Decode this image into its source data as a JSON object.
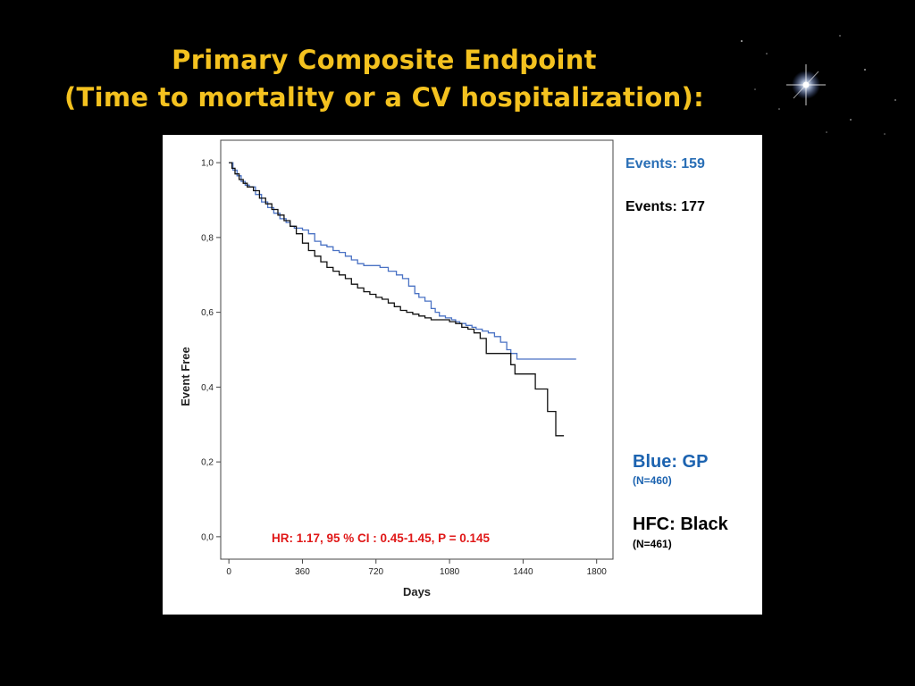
{
  "slide": {
    "title_line1": "Primary Composite Endpoint",
    "title_line2": "(Time to mortality or a CV hospitalization):",
    "title_color": "#f4c21f",
    "background": "#000000"
  },
  "annotations": {
    "events_gp": "Events: 159",
    "events_hfc": "Events: 177",
    "legend_gp_label": "Blue: GP",
    "legend_gp_n": "(N=460)",
    "legend_hfc_label": "HFC: Black",
    "legend_hfc_n": "(N=461)",
    "stats": "HR: 1.17, 95 % CI : 0.45-1.45, P = 0.145",
    "stats_color": "#e01818",
    "gp_color": "#2a6fb6",
    "hfc_color": "#000000"
  },
  "chart_data": {
    "type": "line",
    "xlabel": "Days",
    "ylabel": "Event Free",
    "xlim": [
      -40,
      1880
    ],
    "ylim": [
      -0.06,
      1.06
    ],
    "x_ticks": [
      0,
      360,
      720,
      1080,
      1440,
      1800
    ],
    "x_tick_labels": [
      "0",
      "360",
      "720",
      "1080",
      "1440",
      "1800"
    ],
    "y_ticks": [
      0.0,
      0.2,
      0.4,
      0.6,
      0.8,
      1.0
    ],
    "y_tick_labels": [
      "0,0",
      "0,2",
      "0,4",
      "0,6",
      "0,8",
      "1,0"
    ],
    "grid": false,
    "step": true,
    "series": [
      {
        "key": "gp",
        "color": "#4a72c4",
        "x": [
          0,
          20,
          40,
          60,
          80,
          100,
          130,
          160,
          190,
          220,
          250,
          280,
          300,
          320,
          340,
          360,
          390,
          420,
          450,
          480,
          510,
          540,
          570,
          600,
          630,
          660,
          700,
          740,
          780,
          820,
          850,
          880,
          910,
          930,
          960,
          990,
          1010,
          1030,
          1060,
          1090,
          1110,
          1130,
          1160,
          1190,
          1210,
          1240,
          1270,
          1300,
          1330,
          1360,
          1380,
          1410,
          1440,
          1480,
          1520,
          1560,
          1600,
          1640,
          1700
        ],
        "y": [
          1.0,
          0.98,
          0.965,
          0.95,
          0.94,
          0.935,
          0.915,
          0.895,
          0.88,
          0.865,
          0.85,
          0.84,
          0.83,
          0.825,
          0.825,
          0.82,
          0.81,
          0.79,
          0.78,
          0.775,
          0.765,
          0.76,
          0.75,
          0.74,
          0.73,
          0.725,
          0.725,
          0.72,
          0.71,
          0.7,
          0.69,
          0.67,
          0.65,
          0.64,
          0.63,
          0.61,
          0.6,
          0.59,
          0.585,
          0.58,
          0.575,
          0.57,
          0.565,
          0.56,
          0.555,
          0.55,
          0.545,
          0.535,
          0.52,
          0.5,
          0.49,
          0.475,
          0.475,
          0.475,
          0.475,
          0.475,
          0.475,
          0.475,
          0.475
        ]
      },
      {
        "key": "hfc",
        "color": "#111111",
        "x": [
          0,
          15,
          30,
          50,
          70,
          90,
          120,
          150,
          180,
          210,
          240,
          270,
          300,
          330,
          360,
          390,
          420,
          450,
          480,
          510,
          540,
          570,
          600,
          630,
          660,
          690,
          720,
          750,
          780,
          810,
          840,
          870,
          900,
          930,
          960,
          990,
          1020,
          1050,
          1080,
          1110,
          1140,
          1170,
          1200,
          1230,
          1260,
          1280,
          1320,
          1360,
          1380,
          1400,
          1440,
          1460,
          1500,
          1530,
          1560,
          1580,
          1600,
          1640
        ],
        "y": [
          1.0,
          0.985,
          0.97,
          0.955,
          0.945,
          0.935,
          0.925,
          0.905,
          0.89,
          0.875,
          0.86,
          0.845,
          0.83,
          0.81,
          0.785,
          0.765,
          0.75,
          0.735,
          0.72,
          0.71,
          0.7,
          0.69,
          0.675,
          0.665,
          0.655,
          0.648,
          0.64,
          0.635,
          0.625,
          0.615,
          0.605,
          0.6,
          0.595,
          0.59,
          0.585,
          0.58,
          0.58,
          0.58,
          0.575,
          0.57,
          0.56,
          0.555,
          0.545,
          0.53,
          0.49,
          0.49,
          0.49,
          0.49,
          0.46,
          0.435,
          0.435,
          0.435,
          0.395,
          0.395,
          0.335,
          0.335,
          0.27,
          0.27
        ]
      }
    ]
  }
}
